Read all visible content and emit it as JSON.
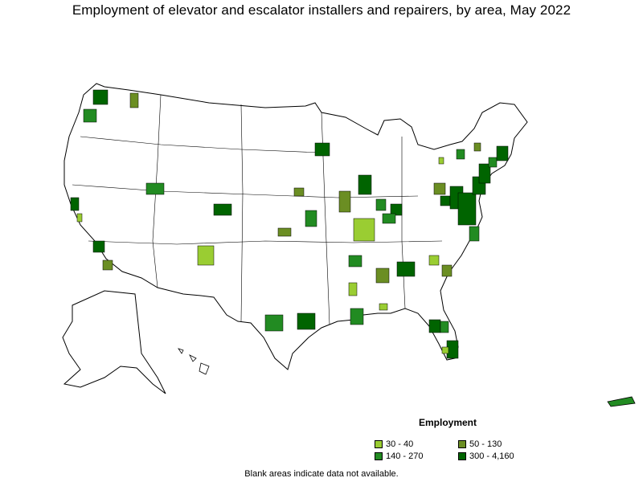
{
  "title": "Employment of elevator and escalator installers and repairers, by area, May 2022",
  "legend": {
    "title": "Employment",
    "items": [
      {
        "label": "30 - 40",
        "color": "#9acd32"
      },
      {
        "label": "50 - 130",
        "color": "#6b8e23"
      },
      {
        "label": "140 - 270",
        "color": "#228b22"
      },
      {
        "label": "300 - 4,160",
        "color": "#006400"
      }
    ]
  },
  "note": "Blank areas indicate data not available.",
  "colors": {
    "outline": "#000000",
    "blank": "#ffffff"
  }
}
